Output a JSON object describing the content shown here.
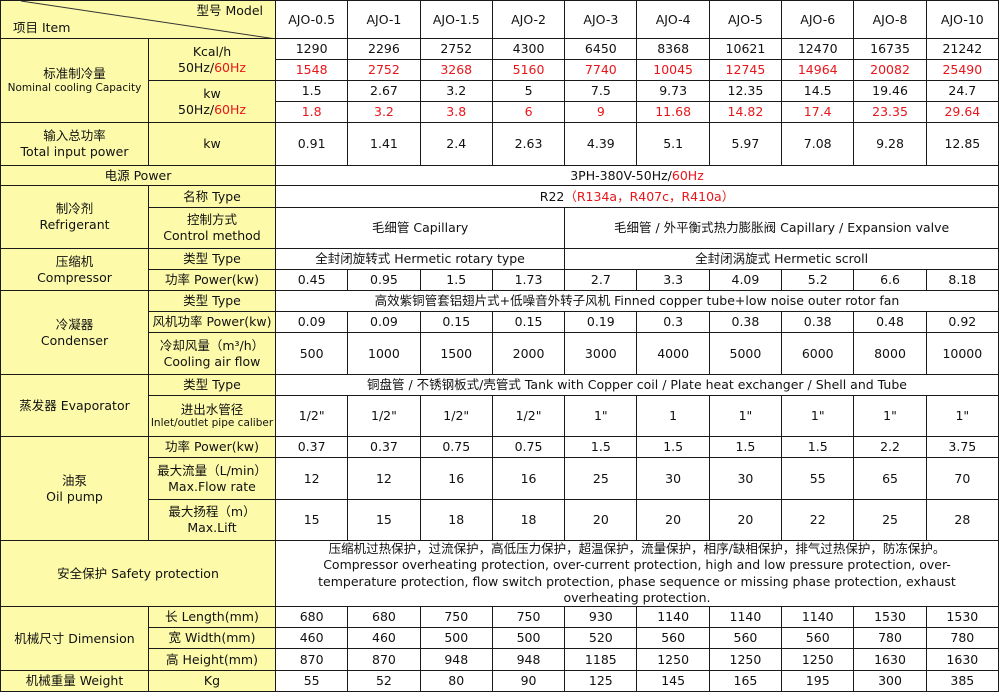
{
  "header": {
    "model_label": "型号  Model",
    "item_label": "项目  Item",
    "models": [
      "AJO-0.5",
      "AJO-1",
      "AJO-1.5",
      "AJO-2",
      "AJO-3",
      "AJO-4",
      "AJO-5",
      "AJO-6",
      "AJO-8",
      "AJO-10"
    ]
  },
  "cooling": {
    "label_cn": "标准制冷量",
    "label_en": "Nominal cooling Capacity",
    "kcal_unit": "Kcal/h",
    "kw_unit": "kw",
    "hz50": "50Hz/",
    "hz60": "60Hz",
    "kcal_50": [
      "1290",
      "2296",
      "2752",
      "4300",
      "6450",
      "8368",
      "10621",
      "12470",
      "16735",
      "21242"
    ],
    "kcal_60": [
      "1548",
      "2752",
      "3268",
      "5160",
      "7740",
      "10045",
      "12745",
      "14964",
      "20082",
      "25490"
    ],
    "kw_50": [
      "1.5",
      "2.67",
      "3.2",
      "5",
      "7.5",
      "9.73",
      "12.35",
      "14.5",
      "19.46",
      "24.7"
    ],
    "kw_60": [
      "1.8",
      "3.2",
      "3.8",
      "6",
      "9",
      "11.68",
      "14.82",
      "17.4",
      "23.35",
      "29.64"
    ]
  },
  "input_power": {
    "label_cn": "输入总功率",
    "label_en": "Total input power",
    "unit": "kw",
    "values": [
      "0.91",
      "1.41",
      "2.4",
      "2.63",
      "4.39",
      "5.1",
      "5.97",
      "7.08",
      "9.28",
      "12.85"
    ]
  },
  "power_supply": {
    "label": "电源  Power",
    "value": "3PH-380V-50Hz/",
    "value_red": "60Hz"
  },
  "refrigerant": {
    "label_cn": "制冷剂",
    "label_en": "Refrigerant",
    "type_label": "名称  Type",
    "type_value": "R22",
    "type_value_red": "（R134a，R407c，R410a）",
    "control_cn": "控制方式",
    "control_en": "Control method",
    "control_small": "毛细管 Capillary",
    "control_large": "毛细管 / 外平衡式热力膨胀阀 Capillary / Expansion valve"
  },
  "compressor": {
    "label_cn": "压缩机",
    "label_en": "Compressor",
    "type_label": "类型  Type",
    "type_small": "全封闭旋转式   Hermetic rotary type",
    "type_large": "全封闭涡旋式   Hermetic scroll",
    "power_label": "功率  Power(kw)",
    "power": [
      "0.45",
      "0.95",
      "1.5",
      "1.73",
      "2.7",
      "3.3",
      "4.09",
      "5.2",
      "6.6",
      "8.18"
    ]
  },
  "condenser": {
    "label_cn": "冷凝器",
    "label_en": "Condenser",
    "type_label": "类型  Type",
    "type_value": "高效紫铜管套铝翅片式+低噪音外转子风机  Finned copper tube+low noise outer rotor fan",
    "fan_label": "风机功率  Power(kw)",
    "fan_power": [
      "0.09",
      "0.09",
      "0.15",
      "0.15",
      "0.19",
      "0.3",
      "0.38",
      "0.38",
      "0.48",
      "0.92"
    ],
    "airflow_cn": "冷却风量（m³/h）",
    "airflow_en": "Cooling air flow",
    "airflow": [
      "500",
      "1000",
      "1500",
      "2000",
      "3000",
      "4000",
      "5000",
      "6000",
      "8000",
      "10000"
    ]
  },
  "evaporator": {
    "label": "蒸发器  Evaporator",
    "type_label": "类型  Type",
    "type_value": "铜盘管 / 不锈钢板式/壳管式  Tank with Copper coil / Plate heat exchanger / Shell and Tube",
    "pipe_cn": "进出水管径",
    "pipe_en": "Inlet/outlet pipe caliber",
    "pipe": [
      "1/2\"",
      "1/2\"",
      "1/2\"",
      "1/2\"",
      "1\"",
      "1",
      "1\"",
      "1\"",
      "1\"",
      "1\""
    ]
  },
  "oil_pump": {
    "label_cn": "油泵",
    "label_en": "Oil pump",
    "power_label": "功率  Power(kw)",
    "power": [
      "0.37",
      "0.37",
      "0.75",
      "0.75",
      "1.5",
      "1.5",
      "1.5",
      "1.5",
      "2.2",
      "3.75"
    ],
    "flow_cn": "最大流量（L/min）",
    "flow_en": "Max.Flow rate",
    "flow": [
      "12",
      "12",
      "16",
      "16",
      "25",
      "30",
      "30",
      "55",
      "65",
      "70"
    ],
    "lift_cn": "最大扬程（m）",
    "lift_en": "Max.Lift",
    "lift": [
      "15",
      "15",
      "18",
      "18",
      "20",
      "20",
      "20",
      "22",
      "25",
      "28"
    ]
  },
  "safety": {
    "label": "安全保护  Safety protection",
    "line_cn": "压缩机过热保护，过流保护，高低压力保护，超温保护，流量保护，相序/缺相保护，排气过热保护，防冻保护。",
    "line_en": "Compressor overheating protection, over-current protection, high and low pressure protection, over-temperature protection, flow switch protection, phase sequence or missing phase protection, exhaust overheating protection."
  },
  "dimension": {
    "label": "机械尺寸  Dimension",
    "length_label": "长  Length(mm)",
    "length": [
      "680",
      "680",
      "750",
      "750",
      "930",
      "1140",
      "1140",
      "1140",
      "1530",
      "1530"
    ],
    "width_label": "宽  Width(mm)",
    "width": [
      "460",
      "460",
      "500",
      "500",
      "520",
      "560",
      "560",
      "560",
      "780",
      "780"
    ],
    "height_label": "高  Height(mm)",
    "height": [
      "870",
      "870",
      "948",
      "948",
      "1185",
      "1250",
      "1250",
      "1250",
      "1630",
      "1630"
    ]
  },
  "weight": {
    "label": "机械重量  Weight",
    "unit": "Kg",
    "values": [
      "55",
      "52",
      "80",
      "90",
      "125",
      "145",
      "165",
      "195",
      "300",
      "385"
    ]
  },
  "colors": {
    "label_bg": "#fdfbaa",
    "highlight_red": "#e8161b",
    "border": "#1a1a1a"
  }
}
